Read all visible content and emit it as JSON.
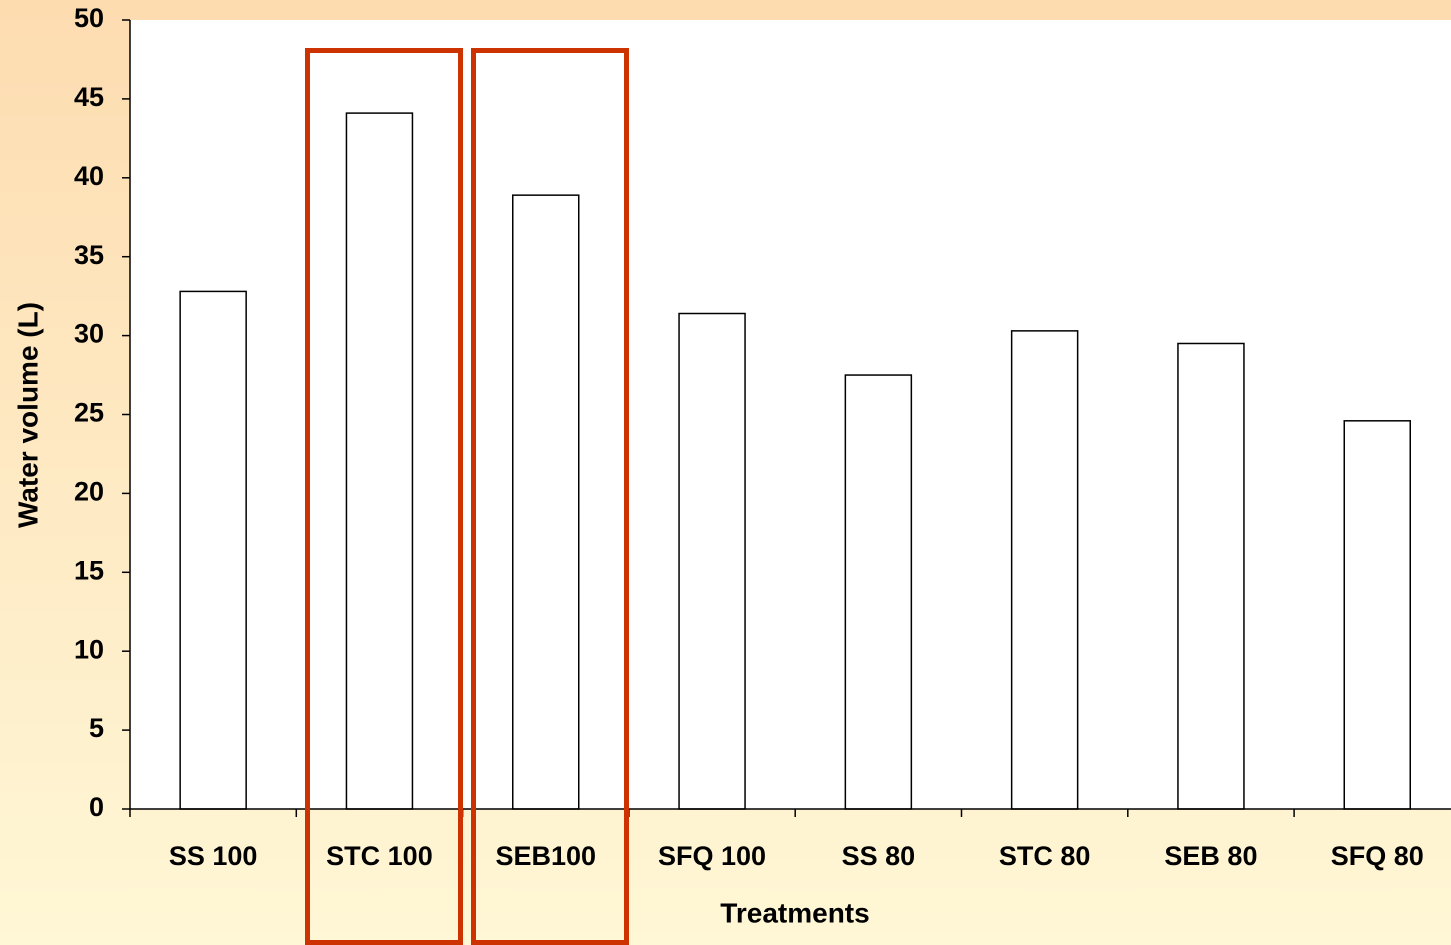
{
  "chart_data": {
    "type": "bar",
    "x_label": "Treatments",
    "y_label": "Water volume (L)",
    "categories": [
      "SS 100",
      "STC 100",
      "SEB100",
      "SFQ 100",
      "SS 80",
      "STC 80",
      "SEB 80",
      "SFQ 80"
    ],
    "values": [
      32.8,
      44.1,
      38.9,
      31.4,
      27.5,
      30.3,
      29.5,
      24.6
    ],
    "color": "#ffffff",
    "ylim": [
      0,
      50
    ],
    "yticks": [
      0,
      5,
      10,
      15,
      20,
      25,
      30,
      35,
      40,
      45,
      50
    ],
    "grid": false
  }
}
